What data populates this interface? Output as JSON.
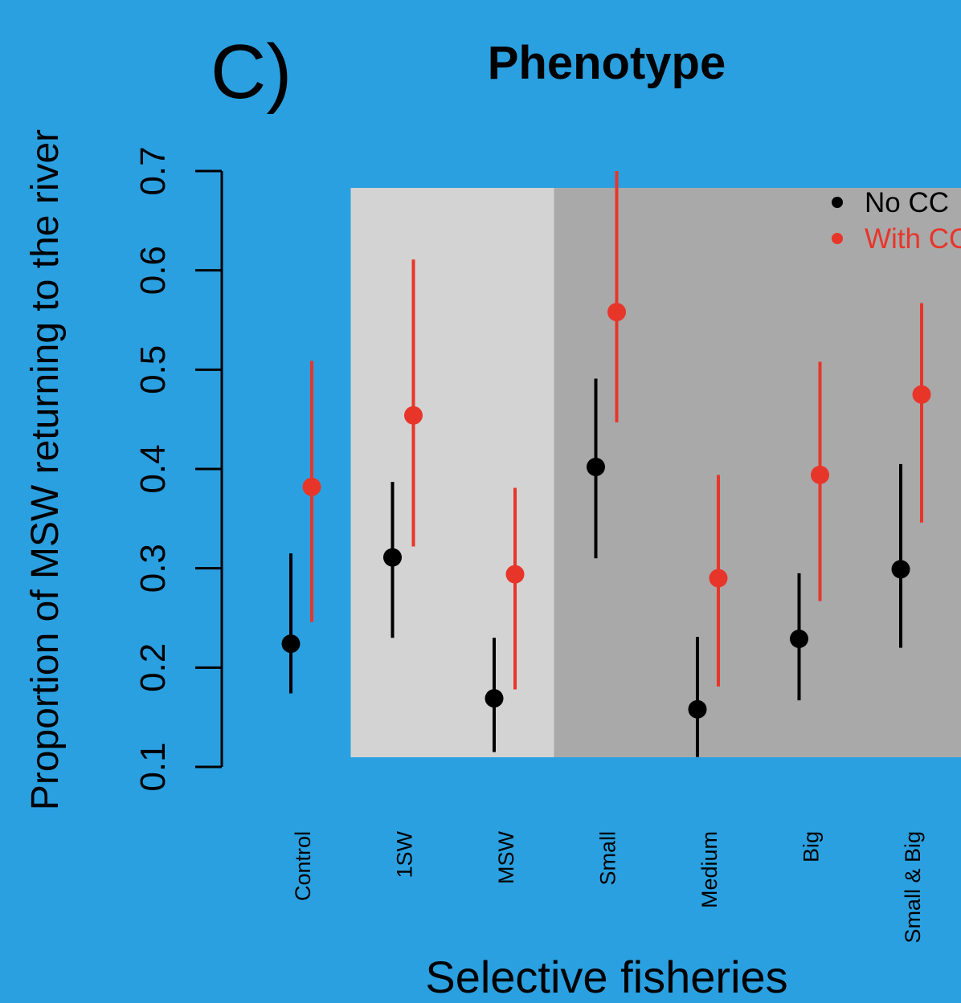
{
  "panel_label": "C)",
  "colors": {
    "background": "#2ba0e0",
    "no_cc": "#000000",
    "with_cc": "#e8352a",
    "shade_light": "#d3d3d3",
    "shade_dark": "#a9a9a9"
  },
  "chart_data": {
    "type": "scatter",
    "title": "Phenotype",
    "xlabel": "Selective fisheries",
    "ylabel": "Proportion of MSW returning to the river",
    "categories": [
      "Control",
      "1SW",
      "MSW",
      "Small",
      "Medium",
      "Big",
      "Small & Big"
    ],
    "ylim": [
      0.1,
      0.7
    ],
    "yticks": [
      "0.1",
      "0.2",
      "0.3",
      "0.4",
      "0.5",
      "0.6",
      "0.7"
    ],
    "series": [
      {
        "name": "No CC",
        "color": "#000000",
        "values": [
          0.224,
          0.311,
          0.169,
          0.402,
          0.158,
          0.229,
          0.299
        ],
        "lower": [
          0.174,
          0.23,
          0.115,
          0.31,
          0.11,
          0.167,
          0.22
        ],
        "upper": [
          0.315,
          0.387,
          0.23,
          0.491,
          0.231,
          0.295,
          0.405
        ]
      },
      {
        "name": "With CC",
        "color": "#e8352a",
        "values": [
          0.382,
          0.454,
          0.294,
          0.558,
          0.29,
          0.394,
          0.475
        ],
        "lower": [
          0.246,
          0.322,
          0.178,
          0.447,
          0.181,
          0.267,
          0.346
        ],
        "upper": [
          0.509,
          0.611,
          0.381,
          0.7,
          0.394,
          0.508,
          0.567
        ]
      }
    ],
    "shaded_groups": [
      {
        "from": "1SW",
        "to": "MSW",
        "shade": "light"
      },
      {
        "from": "Small",
        "to": "Small & Big",
        "shade": "dark"
      }
    ],
    "legend": {
      "position": "top-right",
      "entries": [
        "No CC",
        "With CC"
      ]
    },
    "grid": false
  }
}
